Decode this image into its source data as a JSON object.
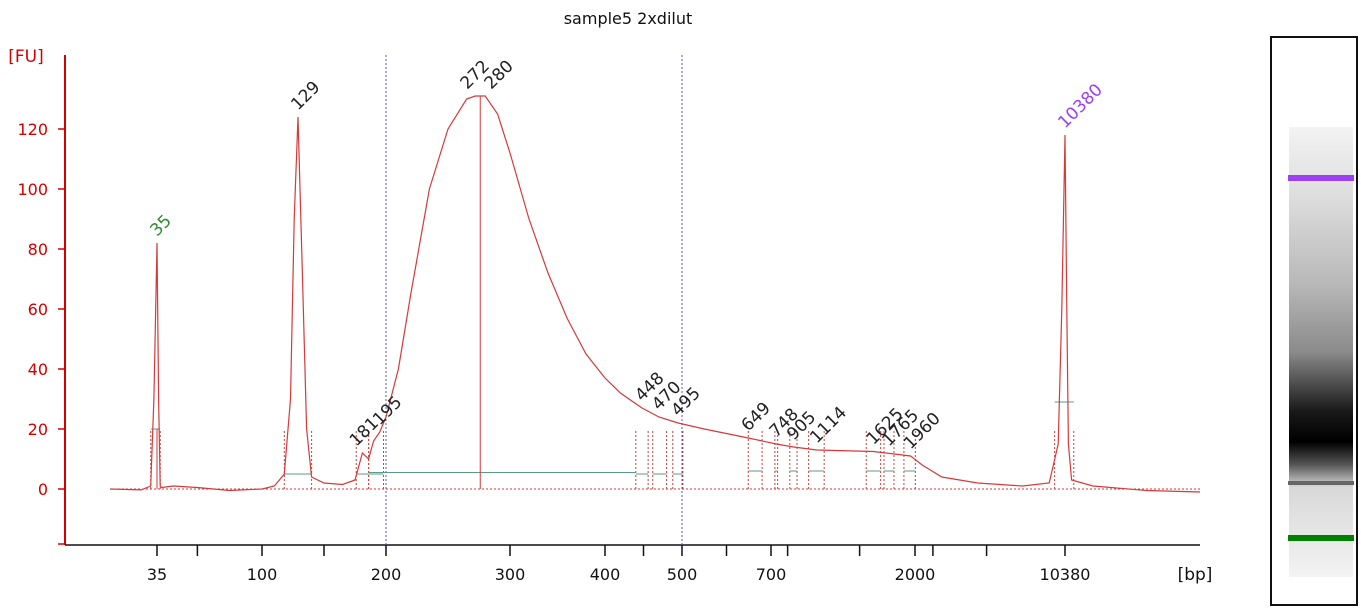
{
  "chart_data": {
    "type": "line",
    "title": "sample5 2xdilut",
    "ylabel": "[FU]",
    "xlabel": "[bp]",
    "ylim": [
      -18,
      140
    ],
    "y_ticks": [
      0,
      20,
      40,
      60,
      80,
      100,
      120
    ],
    "x_ticks": [
      "35",
      "100",
      "200",
      "300",
      "400",
      "500",
      "700",
      "2000",
      "10380"
    ],
    "x_scale": "nonlinear electropherogram (bp)",
    "grid": false,
    "series": [
      {
        "points": [
          [
            20,
            0
          ],
          [
            30,
            -0.3
          ],
          [
            33,
            1
          ],
          [
            34,
            30
          ],
          [
            35,
            82
          ],
          [
            36,
            30
          ],
          [
            37,
            1
          ],
          [
            38,
            0.5
          ],
          [
            45,
            1
          ],
          [
            60,
            0.5
          ],
          [
            80,
            -0.5
          ],
          [
            100,
            0
          ],
          [
            110,
            1
          ],
          [
            118,
            5
          ],
          [
            123,
            30
          ],
          [
            126,
            90
          ],
          [
            129,
            124
          ],
          [
            132,
            80
          ],
          [
            136,
            20
          ],
          [
            140,
            4
          ],
          [
            150,
            2
          ],
          [
            165,
            1.5
          ],
          [
            175,
            3
          ],
          [
            181,
            12
          ],
          [
            186,
            10
          ],
          [
            190,
            16
          ],
          [
            195,
            19
          ],
          [
            200,
            24
          ],
          [
            210,
            40
          ],
          [
            220,
            65
          ],
          [
            235,
            100
          ],
          [
            250,
            120
          ],
          [
            265,
            130
          ],
          [
            272,
            131
          ],
          [
            280,
            131
          ],
          [
            290,
            125
          ],
          [
            300,
            112
          ],
          [
            320,
            90
          ],
          [
            340,
            72
          ],
          [
            360,
            57
          ],
          [
            380,
            45
          ],
          [
            400,
            37
          ],
          [
            420,
            32
          ],
          [
            448,
            27
          ],
          [
            470,
            24
          ],
          [
            495,
            22
          ],
          [
            550,
            20
          ],
          [
            649,
            17
          ],
          [
            748,
            15
          ],
          [
            905,
            14
          ],
          [
            1114,
            13
          ],
          [
            1625,
            12.5
          ],
          [
            1960,
            11
          ],
          [
            2400,
            8
          ],
          [
            3500,
            4
          ],
          [
            5500,
            2
          ],
          [
            8000,
            1
          ],
          [
            9500,
            2
          ],
          [
            10000,
            15
          ],
          [
            10200,
            60
          ],
          [
            10380,
            118
          ],
          [
            10550,
            60
          ],
          [
            10700,
            15
          ],
          [
            11000,
            3
          ],
          [
            13000,
            1
          ],
          [
            18000,
            -0.5
          ],
          [
            23000,
            -1
          ]
        ]
      }
    ],
    "peaks": [
      {
        "label": "35",
        "x": 35,
        "y": 82,
        "color": "#2e8b2e"
      },
      {
        "label": "129",
        "x": 129,
        "y": 124,
        "color": "#222222"
      },
      {
        "label": "181",
        "x": 181,
        "y": 12,
        "color": "#222222"
      },
      {
        "label": "195",
        "x": 195,
        "y": 19,
        "color": "#222222"
      },
      {
        "label": "272",
        "x": 272,
        "y": 131,
        "color": "#222222"
      },
      {
        "label": "280",
        "x": 280,
        "y": 131,
        "color": "#222222"
      },
      {
        "label": "448",
        "x": 448,
        "y": 27,
        "color": "#222222"
      },
      {
        "label": "470",
        "x": 470,
        "y": 24,
        "color": "#222222"
      },
      {
        "label": "495",
        "x": 495,
        "y": 22,
        "color": "#222222"
      },
      {
        "label": "649",
        "x": 649,
        "y": 17,
        "color": "#222222"
      },
      {
        "label": "748",
        "x": 748,
        "y": 15,
        "color": "#222222"
      },
      {
        "label": "905",
        "x": 905,
        "y": 14,
        "color": "#222222"
      },
      {
        "label": "1114",
        "x": 1114,
        "y": 13,
        "color": "#222222"
      },
      {
        "label": "1625",
        "x": 1625,
        "y": 12.5,
        "color": "#222222"
      },
      {
        "label": "1765",
        "x": 1765,
        "y": 12,
        "color": "#222222"
      },
      {
        "label": "1960",
        "x": 1960,
        "y": 11,
        "color": "#222222"
      },
      {
        "label": "10380",
        "x": 10380,
        "y": 118,
        "color": "#9b3ff0"
      }
    ],
    "region_markers_bp": [
      200,
      500
    ],
    "gel_lane": {
      "upper_marker_color": "#9b3ff0",
      "lower_marker_color": "#008000"
    },
    "colors": {
      "axis": "#d40000",
      "trace": "#d43a3a",
      "baseline": "#5a9a8a",
      "marker_line": "#5555cc"
    }
  }
}
